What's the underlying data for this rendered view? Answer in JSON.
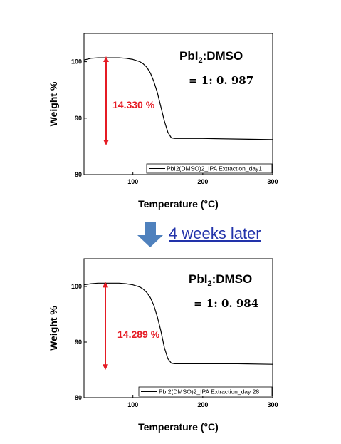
{
  "transition": {
    "label": "4 weeks later",
    "arrow_color": "#4f81bd",
    "text_color": "#2233aa",
    "arrow_icon": "down-arrow-icon"
  },
  "colors": {
    "curve": "#000000",
    "annotation": "#e51b24"
  },
  "chart_data": [
    {
      "type": "line",
      "title": "",
      "xlabel": "Temperature (°C)",
      "ylabel": "Weight %",
      "xlim": [
        30,
        300
      ],
      "ylim": [
        80,
        105
      ],
      "xticks": [
        100,
        200,
        300
      ],
      "yticks": [
        80,
        90,
        100
      ],
      "grid": false,
      "legend_position": "bottom-right",
      "series": [
        {
          "name": "PbI2(DMSO)2_IPA Extraction_day1",
          "x": [
            30,
            40,
            50,
            60,
            70,
            80,
            90,
            100,
            110,
            115,
            120,
            125,
            130,
            135,
            140,
            145,
            150,
            155,
            160,
            170,
            200,
            250,
            300
          ],
          "y": [
            100.3,
            100.6,
            100.7,
            100.7,
            100.7,
            100.7,
            100.6,
            100.4,
            100.0,
            99.6,
            99.0,
            98.0,
            96.5,
            94.5,
            92.0,
            89.5,
            87.5,
            86.5,
            86.4,
            86.4,
            86.4,
            86.3,
            86.2
          ]
        }
      ],
      "annotations": {
        "compound": "PbI",
        "compound_sub": "2",
        "compound_suffix": ":DMSO",
        "ratio": "= 1: 0. 987",
        "mass_loss": "14.330 %"
      }
    },
    {
      "type": "line",
      "title": "",
      "xlabel": "Temperature (°C)",
      "ylabel": "Weight %",
      "xlim": [
        30,
        300
      ],
      "ylim": [
        80,
        105
      ],
      "xticks": [
        100,
        200,
        300
      ],
      "yticks": [
        80,
        90,
        100
      ],
      "grid": false,
      "legend_position": "bottom-right",
      "series": [
        {
          "name": "PbI2(DMSO)2_IPA Extraction_day 28",
          "x": [
            30,
            40,
            50,
            60,
            70,
            80,
            90,
            100,
            110,
            115,
            120,
            125,
            130,
            135,
            140,
            145,
            150,
            155,
            160,
            170,
            200,
            250,
            300
          ],
          "y": [
            100.3,
            100.5,
            100.6,
            100.6,
            100.6,
            100.6,
            100.5,
            100.3,
            99.9,
            99.5,
            98.9,
            98.0,
            96.6,
            94.5,
            92.0,
            89.0,
            87.0,
            86.2,
            86.1,
            86.1,
            86.1,
            86.1,
            86.0
          ]
        }
      ],
      "annotations": {
        "compound": "PbI",
        "compound_sub": "2",
        "compound_suffix": ":DMSO",
        "ratio": "= 1: 0. 984",
        "mass_loss": "14.289 %"
      }
    }
  ]
}
